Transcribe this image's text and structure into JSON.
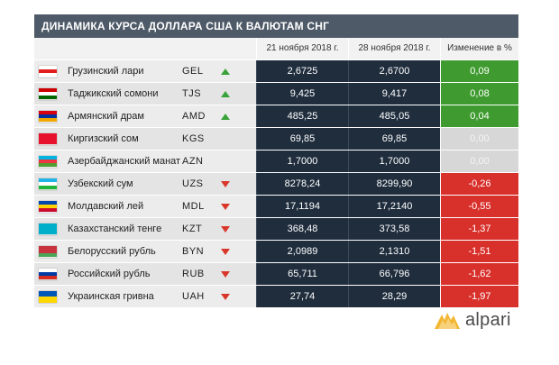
{
  "title": "ДИНАМИКА КУРСА ДОЛЛАРА США К ВАЛЮТАМ СНГ",
  "columns": {
    "date1": "21 ноября 2018 г.",
    "date2": "28 ноября 2018 г.",
    "change": "Изменение в %"
  },
  "rows": [
    {
      "name": "Грузинский лари",
      "code": "GEL",
      "trend": "up",
      "v1": "2,6725",
      "v2": "2,6700",
      "change": "0,09",
      "change_type": "pos"
    },
    {
      "name": "Таджикский сомони",
      "code": "TJS",
      "trend": "up",
      "v1": "9,425",
      "v2": "9,417",
      "change": "0,08",
      "change_type": "pos"
    },
    {
      "name": "Армянский драм",
      "code": "AMD",
      "trend": "up",
      "v1": "485,25",
      "v2": "485,05",
      "change": "0,04",
      "change_type": "pos"
    },
    {
      "name": "Киргизский сом",
      "code": "KGS",
      "trend": "none",
      "v1": "69,85",
      "v2": "69,85",
      "change": "0,00",
      "change_type": "zero"
    },
    {
      "name": "Азербайджанский манат",
      "code": "AZN",
      "trend": "none",
      "v1": "1,7000",
      "v2": "1,7000",
      "change": "0,00",
      "change_type": "zero"
    },
    {
      "name": "Узбекский сум",
      "code": "UZS",
      "trend": "down",
      "v1": "8278,24",
      "v2": "8299,90",
      "change": "-0,26",
      "change_type": "neg"
    },
    {
      "name": "Молдавский лей",
      "code": "MDL",
      "trend": "down",
      "v1": "17,1194",
      "v2": "17,2140",
      "change": "-0,55",
      "change_type": "neg"
    },
    {
      "name": "Казахстанский тенге",
      "code": "KZT",
      "trend": "down",
      "v1": "368,48",
      "v2": "373,58",
      "change": "-1,37",
      "change_type": "neg"
    },
    {
      "name": "Белорусский рубль",
      "code": "BYN",
      "trend": "down",
      "v1": "2,0989",
      "v2": "2,1310",
      "change": "-1,51",
      "change_type": "neg"
    },
    {
      "name": "Российский рубль",
      "code": "RUB",
      "trend": "down",
      "v1": "65,711",
      "v2": "66,796",
      "change": "-1,62",
      "change_type": "neg"
    },
    {
      "name": "Украинская гривна",
      "code": "UAH",
      "trend": "down",
      "v1": "27,74",
      "v2": "28,29",
      "change": "-1,97",
      "change_type": "neg"
    }
  ],
  "logo": {
    "text": "alpari"
  },
  "colors": {
    "header": "#4e5a68",
    "value_bg": "#1f2d3d",
    "positive": "#3f9b2f",
    "negative": "#d8302b",
    "neutral": "#d7d7d7"
  }
}
